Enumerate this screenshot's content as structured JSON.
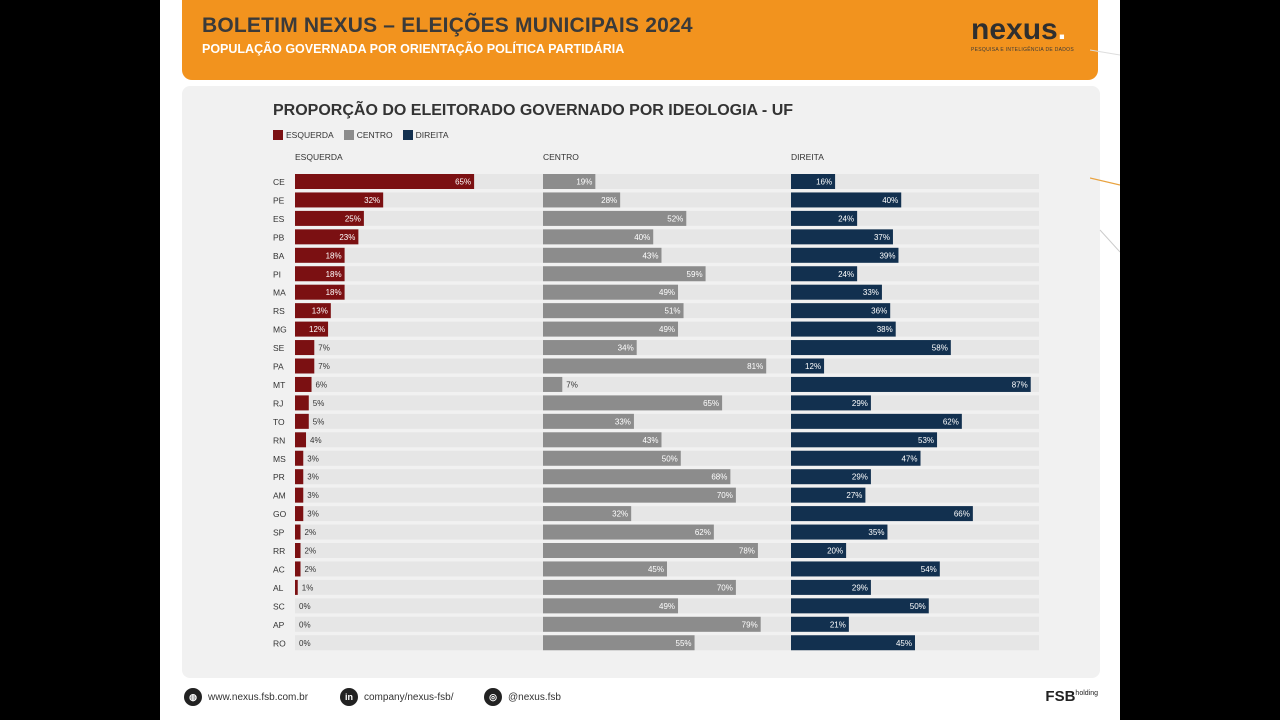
{
  "header": {
    "title": "BOLETIM NEXUS – ELEIÇÕES MUNICIPAIS 2024",
    "subtitle": "POPULAÇÃO GOVERNADA POR  ORIENTAÇÃO POLÍTICA PARTIDÁRIA",
    "brand": "nexus",
    "brand_dot": ".",
    "tagline": "PESQUISA E INTELIGÊNCIA DE DADOS"
  },
  "footer": {
    "website": "www.nexus.fsb.com.br",
    "website_icon": "globe-icon",
    "linkedin": "company/nexus-fsb/",
    "linkedin_icon": "linkedin-icon",
    "linkedin_badge": "in",
    "instagram": "@nexus.fsb",
    "instagram_icon": "instagram-icon",
    "fsb_logo": "FSB",
    "fsb_suffix": "holding"
  },
  "colors": {
    "esquerda": "#7b1012",
    "centro": "#8c8c8c",
    "direita": "#12304f",
    "track": "#e6e6e6",
    "header": "#f2931e"
  },
  "chart_data": {
    "type": "bar",
    "title": "PROPORÇÃO DO ELEITORADO GOVERNADO POR IDEOLOGIA - UF",
    "legend": [
      "ESQUERDA",
      "CENTRO",
      "DIREITA"
    ],
    "legend_position": "top-left",
    "value_suffix": "%",
    "xlim": [
      0,
      90
    ],
    "categories": [
      "CE",
      "PE",
      "ES",
      "PB",
      "BA",
      "PI",
      "MA",
      "RS",
      "MG",
      "SE",
      "PA",
      "MT",
      "RJ",
      "TO",
      "RN",
      "MS",
      "PR",
      "AM",
      "GO",
      "SP",
      "RR",
      "AC",
      "AL",
      "SC",
      "AP",
      "RO"
    ],
    "series": [
      {
        "name": "ESQUERDA",
        "values": [
          65,
          32,
          25,
          23,
          18,
          18,
          18,
          13,
          12,
          7,
          7,
          6,
          5,
          5,
          4,
          3,
          3,
          3,
          3,
          2,
          2,
          2,
          1,
          0,
          0,
          0
        ]
      },
      {
        "name": "CENTRO",
        "values": [
          19,
          28,
          52,
          40,
          43,
          59,
          49,
          51,
          49,
          34,
          81,
          7,
          65,
          33,
          43,
          50,
          68,
          70,
          32,
          62,
          78,
          45,
          70,
          49,
          79,
          55
        ]
      },
      {
        "name": "DIREITA",
        "values": [
          16,
          40,
          24,
          37,
          39,
          24,
          33,
          36,
          38,
          58,
          12,
          87,
          29,
          62,
          53,
          47,
          29,
          27,
          66,
          35,
          20,
          54,
          29,
          50,
          21,
          45
        ]
      }
    ]
  }
}
